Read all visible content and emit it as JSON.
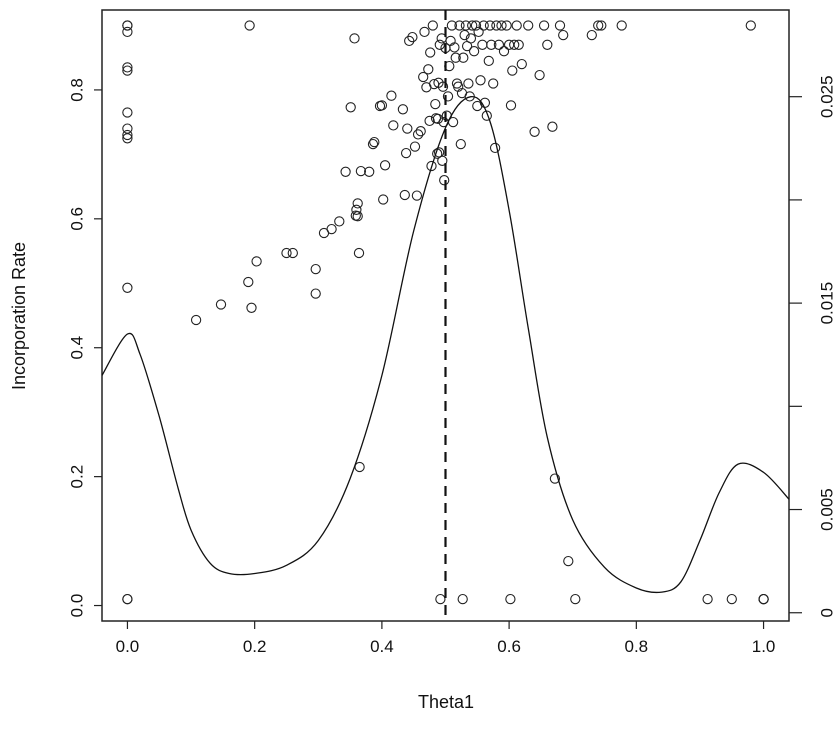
{
  "chart_data": {
    "type": "scatter",
    "title": "",
    "xlabel": "Theta1",
    "ylabel": "Incorporation Rate",
    "xlim": [
      -0.04,
      1.04
    ],
    "ylim": [
      -0.024,
      0.924
    ],
    "y2lim": [
      -0.0004,
      0.0292
    ],
    "xticks": [
      "0.0",
      "0.2",
      "0.4",
      "0.6",
      "0.8",
      "1.0"
    ],
    "xtick_values": [
      0,
      0.2,
      0.4,
      0.6,
      0.8,
      1.0
    ],
    "yticks": [
      "0.0",
      "0.2",
      "0.4",
      "0.6",
      "0.8"
    ],
    "ytick_values": [
      0,
      0.2,
      0.4,
      0.6,
      0.8
    ],
    "y2ticks": [
      "0",
      "0.005",
      "0.015",
      "0.025"
    ],
    "y2tick_values": [
      0,
      0.005,
      0.015,
      0.025
    ],
    "y2_minor_ticks": [
      0.01,
      0.02
    ],
    "grid": false,
    "legend": "none",
    "colors": {
      "points": "#222222",
      "curve": "#111111",
      "vline": "#111111"
    },
    "vline": {
      "x": 0.5,
      "style": "dashed"
    },
    "points": [
      [
        0,
        0.9
      ],
      [
        0,
        0.9
      ],
      [
        0,
        0.89
      ],
      [
        0,
        0.835
      ],
      [
        0,
        0.83
      ],
      [
        0,
        0.765
      ],
      [
        0,
        0.74
      ],
      [
        0,
        0.73
      ],
      [
        0,
        0.725
      ],
      [
        0,
        0.493
      ],
      [
        0,
        0.01
      ],
      [
        0,
        0.01
      ],
      [
        0.108,
        0.443
      ],
      [
        0.147,
        0.467
      ],
      [
        0.19,
        0.502
      ],
      [
        0.192,
        0.9
      ],
      [
        0.195,
        0.462
      ],
      [
        0.203,
        0.534
      ],
      [
        0.25,
        0.547
      ],
      [
        0.26,
        0.547
      ],
      [
        0.296,
        0.484
      ],
      [
        0.296,
        0.522
      ],
      [
        0.309,
        0.578
      ],
      [
        0.321,
        0.584
      ],
      [
        0.333,
        0.596
      ],
      [
        0.343,
        0.673
      ],
      [
        0.351,
        0.773
      ],
      [
        0.357,
        0.88
      ],
      [
        0.359,
        0.605
      ],
      [
        0.36,
        0.614
      ],
      [
        0.362,
        0.624
      ],
      [
        0.362,
        0.604
      ],
      [
        0.364,
        0.547
      ],
      [
        0.365,
        0.215
      ],
      [
        0.367,
        0.674
      ],
      [
        0.38,
        0.673
      ],
      [
        0.386,
        0.716
      ],
      [
        0.388,
        0.719
      ],
      [
        0.397,
        0.775
      ],
      [
        0.4,
        0.776
      ],
      [
        0.402,
        0.63
      ],
      [
        0.405,
        0.683
      ],
      [
        0.415,
        0.791
      ],
      [
        0.418,
        0.745
      ],
      [
        0.433,
        0.77
      ],
      [
        0.436,
        0.637
      ],
      [
        0.438,
        0.702
      ],
      [
        0.44,
        0.74
      ],
      [
        0.443,
        0.876
      ],
      [
        0.448,
        0.882
      ],
      [
        0.452,
        0.712
      ],
      [
        0.455,
        0.636
      ],
      [
        0.457,
        0.731
      ],
      [
        0.461,
        0.736
      ],
      [
        0.465,
        0.82
      ],
      [
        0.467,
        0.89
      ],
      [
        0.47,
        0.804
      ],
      [
        0.473,
        0.832
      ],
      [
        0.475,
        0.752
      ],
      [
        0.476,
        0.858
      ],
      [
        0.478,
        0.682
      ],
      [
        0.48,
        0.9
      ],
      [
        0.482,
        0.809
      ],
      [
        0.484,
        0.778
      ],
      [
        0.485,
        0.756
      ],
      [
        0.487,
        0.701
      ],
      [
        0.488,
        0.755
      ],
      [
        0.489,
        0.811
      ],
      [
        0.49,
        0.703
      ],
      [
        0.491,
        0.87
      ],
      [
        0.492,
        0.01
      ],
      [
        0.494,
        0.88
      ],
      [
        0.495,
        0.69
      ],
      [
        0.496,
        0.805
      ],
      [
        0.497,
        0.75
      ],
      [
        0.498,
        0.66
      ],
      [
        0.5,
        0.865
      ],
      [
        0.502,
        0.76
      ],
      [
        0.504,
        0.79
      ],
      [
        0.506,
        0.837
      ],
      [
        0.508,
        0.876
      ],
      [
        0.51,
        0.9
      ],
      [
        0.512,
        0.75
      ],
      [
        0.514,
        0.866
      ],
      [
        0.516,
        0.85
      ],
      [
        0.518,
        0.81
      ],
      [
        0.52,
        0.805
      ],
      [
        0.522,
        0.9
      ],
      [
        0.524,
        0.716
      ],
      [
        0.526,
        0.795
      ],
      [
        0.527,
        0.01
      ],
      [
        0.528,
        0.85
      ],
      [
        0.53,
        0.885
      ],
      [
        0.532,
        0.9
      ],
      [
        0.534,
        0.868
      ],
      [
        0.536,
        0.81
      ],
      [
        0.538,
        0.79
      ],
      [
        0.54,
        0.88
      ],
      [
        0.542,
        0.9
      ],
      [
        0.545,
        0.86
      ],
      [
        0.548,
        0.9
      ],
      [
        0.55,
        0.775
      ],
      [
        0.552,
        0.89
      ],
      [
        0.555,
        0.815
      ],
      [
        0.558,
        0.87
      ],
      [
        0.56,
        0.9
      ],
      [
        0.562,
        0.78
      ],
      [
        0.565,
        0.76
      ],
      [
        0.568,
        0.845
      ],
      [
        0.57,
        0.9
      ],
      [
        0.572,
        0.87
      ],
      [
        0.575,
        0.81
      ],
      [
        0.578,
        0.71
      ],
      [
        0.58,
        0.9
      ],
      [
        0.584,
        0.87
      ],
      [
        0.588,
        0.9
      ],
      [
        0.592,
        0.86
      ],
      [
        0.596,
        0.9
      ],
      [
        0.6,
        0.87
      ],
      [
        0.602,
        0.01
      ],
      [
        0.603,
        0.776
      ],
      [
        0.605,
        0.83
      ],
      [
        0.608,
        0.87
      ],
      [
        0.612,
        0.9
      ],
      [
        0.615,
        0.87
      ],
      [
        0.62,
        0.84
      ],
      [
        0.63,
        0.9
      ],
      [
        0.64,
        0.735
      ],
      [
        0.648,
        0.823
      ],
      [
        0.655,
        0.9
      ],
      [
        0.66,
        0.87
      ],
      [
        0.668,
        0.743
      ],
      [
        0.672,
        0.197
      ],
      [
        0.68,
        0.9
      ],
      [
        0.685,
        0.885
      ],
      [
        0.693,
        0.069
      ],
      [
        0.704,
        0.01
      ],
      [
        0.73,
        0.885
      ],
      [
        0.74,
        0.9
      ],
      [
        0.745,
        0.9
      ],
      [
        0.777,
        0.9
      ],
      [
        0.912,
        0.01
      ],
      [
        0.95,
        0.01
      ],
      [
        0.98,
        0.9
      ],
      [
        1.0,
        0.01
      ],
      [
        1.0,
        0.01
      ],
      [
        1.0,
        0.01
      ]
    ],
    "density_curve": [
      [
        -0.04,
        0.0115
      ],
      [
        0,
        0.0135
      ],
      [
        0.02,
        0.0125
      ],
      [
        0.05,
        0.0095
      ],
      [
        0.08,
        0.006
      ],
      [
        0.1,
        0.004
      ],
      [
        0.13,
        0.0024
      ],
      [
        0.16,
        0.0019
      ],
      [
        0.2,
        0.0019
      ],
      [
        0.25,
        0.0023
      ],
      [
        0.3,
        0.0035
      ],
      [
        0.35,
        0.0065
      ],
      [
        0.4,
        0.0115
      ],
      [
        0.45,
        0.0185
      ],
      [
        0.5,
        0.0235
      ],
      [
        0.54,
        0.025
      ],
      [
        0.57,
        0.0238
      ],
      [
        0.6,
        0.0195
      ],
      [
        0.63,
        0.0138
      ],
      [
        0.66,
        0.0085
      ],
      [
        0.7,
        0.0045
      ],
      [
        0.75,
        0.0022
      ],
      [
        0.8,
        0.0012
      ],
      [
        0.84,
        0.001
      ],
      [
        0.87,
        0.0015
      ],
      [
        0.9,
        0.0035
      ],
      [
        0.93,
        0.0058
      ],
      [
        0.96,
        0.0072
      ],
      [
        1.0,
        0.0068
      ],
      [
        1.04,
        0.0055
      ]
    ]
  }
}
